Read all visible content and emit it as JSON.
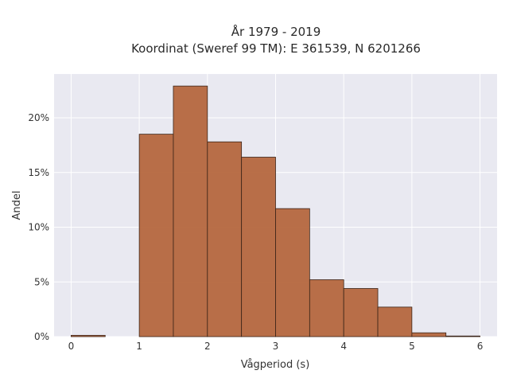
{
  "chart_data": {
    "type": "bar",
    "title_line1": "År 1979 - 2019",
    "title_line2": "Koordinat (Sweref 99 TM): E 361539, N 6201266",
    "xlabel": "Vågperiod (s)",
    "ylabel": "Andel",
    "xlim": [
      -0.25,
      6.25
    ],
    "ylim": [
      0,
      0.24
    ],
    "x_ticks": [
      0,
      1,
      2,
      3,
      4,
      5,
      6
    ],
    "y_ticks": [
      {
        "value": 0,
        "label": "0%"
      },
      {
        "value": 0.05,
        "label": "5%"
      },
      {
        "value": 0.1,
        "label": "10%"
      },
      {
        "value": 0.15,
        "label": "15%"
      },
      {
        "value": 0.2,
        "label": "20%"
      }
    ],
    "bins": [
      {
        "x0": 0.0,
        "x1": 0.5,
        "value": 0.0012
      },
      {
        "x0": 0.5,
        "x1": 1.0,
        "value": 0.0
      },
      {
        "x0": 1.0,
        "x1": 1.5,
        "value": 0.185
      },
      {
        "x0": 1.5,
        "x1": 2.0,
        "value": 0.229
      },
      {
        "x0": 2.0,
        "x1": 2.5,
        "value": 0.178
      },
      {
        "x0": 2.5,
        "x1": 3.0,
        "value": 0.164
      },
      {
        "x0": 3.0,
        "x1": 3.5,
        "value": 0.117
      },
      {
        "x0": 3.5,
        "x1": 4.0,
        "value": 0.052
      },
      {
        "x0": 4.0,
        "x1": 4.5,
        "value": 0.044
      },
      {
        "x0": 4.5,
        "x1": 5.0,
        "value": 0.027
      },
      {
        "x0": 5.0,
        "x1": 5.5,
        "value": 0.0035
      },
      {
        "x0": 5.5,
        "x1": 6.0,
        "value": 0.0005
      }
    ],
    "grid": true,
    "bar_color": "#b5673e",
    "bar_edge_color": "#3a2418",
    "plot_bg": "#e9e9f1",
    "grid_color": "#ffffff"
  }
}
